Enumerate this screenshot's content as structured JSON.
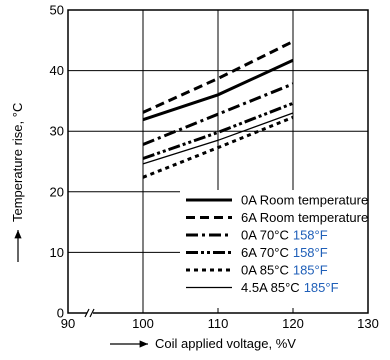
{
  "chart_data": {
    "type": "line",
    "xlabel": "Coil applied voltage, %V",
    "ylabel": "Temperature rise, °C",
    "xlim": [
      90,
      130
    ],
    "ylim": [
      0,
      50
    ],
    "x_ticks": [
      "90",
      "100",
      "110",
      "120",
      "130"
    ],
    "y_ticks": [
      "0",
      "10",
      "20",
      "30",
      "40",
      "50"
    ],
    "grid": true,
    "legend_position": "bottom-right",
    "series": [
      {
        "name": "0A Room temperature",
        "name_fahrenheit": "",
        "style": "solid-thick",
        "x": [
          100,
          110,
          120
        ],
        "y": [
          31.9,
          36.0,
          41.7
        ]
      },
      {
        "name": "6A Room temperature",
        "name_fahrenheit": "",
        "style": "dashed",
        "x": [
          100,
          110,
          120
        ],
        "y": [
          33.1,
          38.7,
          44.8
        ]
      },
      {
        "name": "0A 70°C",
        "name_fahrenheit": "158°F",
        "style": "dash-dot",
        "x": [
          100,
          110,
          120
        ],
        "y": [
          27.8,
          32.8,
          37.8
        ]
      },
      {
        "name": "6A 70°C",
        "name_fahrenheit": "158°F",
        "style": "dash-dot-dot",
        "x": [
          100,
          110,
          120
        ],
        "y": [
          25.5,
          29.8,
          34.6
        ]
      },
      {
        "name": "0A 85°C",
        "name_fahrenheit": "185°F",
        "style": "dotted",
        "x": [
          100,
          110,
          120
        ],
        "y": [
          22.4,
          27.3,
          32.3
        ]
      },
      {
        "name": "4.5A 85°C",
        "name_fahrenheit": "185°F",
        "style": "solid-thin",
        "x": [
          100,
          110,
          120
        ],
        "y": [
          24.6,
          28.5,
          33.0
        ]
      }
    ]
  }
}
